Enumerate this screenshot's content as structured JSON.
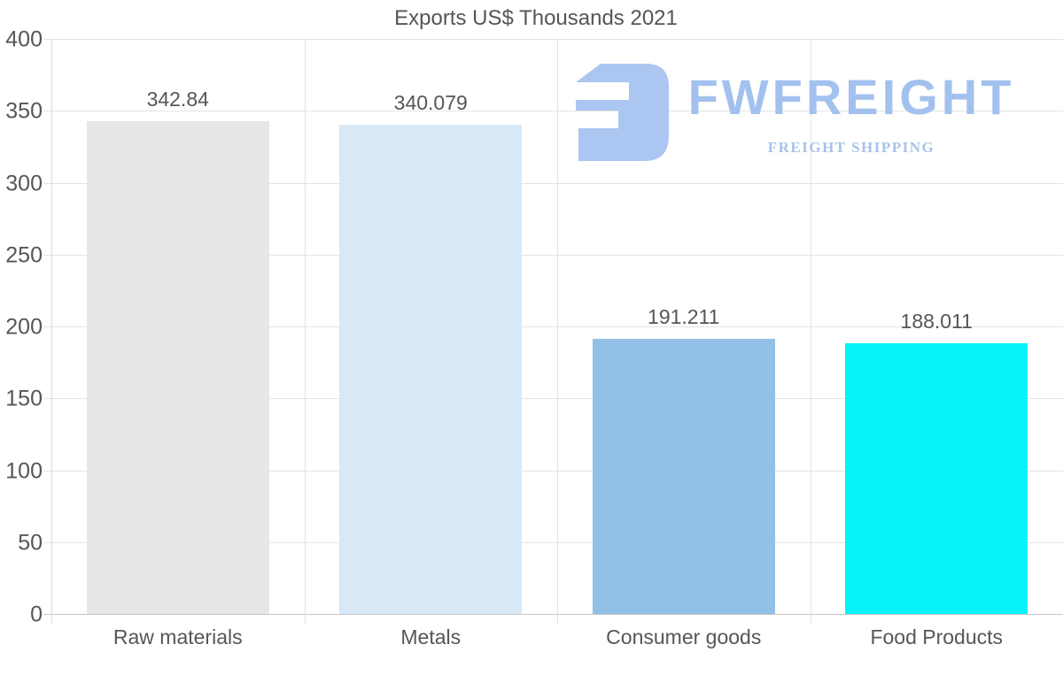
{
  "title": "Exports US$ Thousands 2021",
  "logo": {
    "brand": "FWFREIGHT",
    "tagline": "FREIGHT SHIPPING",
    "brand_color": "#a3c1ee",
    "tagline_color": "#a9c2ea",
    "mark_color": "#abc6f1"
  },
  "colors": {
    "text": "#565656",
    "gridline": "#e4e4e4",
    "baseline": "#c7c7c7",
    "axis": "#d9d9d9"
  },
  "chart_data": {
    "type": "bar",
    "title": "Exports US$ Thousands 2021",
    "categories": [
      "Raw materials",
      "Metals",
      "Consumer goods",
      "Food Products"
    ],
    "values": [
      342.84,
      340.079,
      191.211,
      188.011
    ],
    "value_labels": [
      "342.84",
      "340.079",
      "191.211",
      "188.011"
    ],
    "bar_colors": [
      "#e7e7e8",
      "#d7e9f7",
      "#93c0e6",
      "#06f3f9"
    ],
    "xlabel": "",
    "ylabel": "",
    "ylim": [
      0,
      400
    ],
    "yticks": [
      0,
      50,
      100,
      150,
      200,
      250,
      300,
      350,
      400
    ],
    "grid": true,
    "legend_position": "none"
  }
}
